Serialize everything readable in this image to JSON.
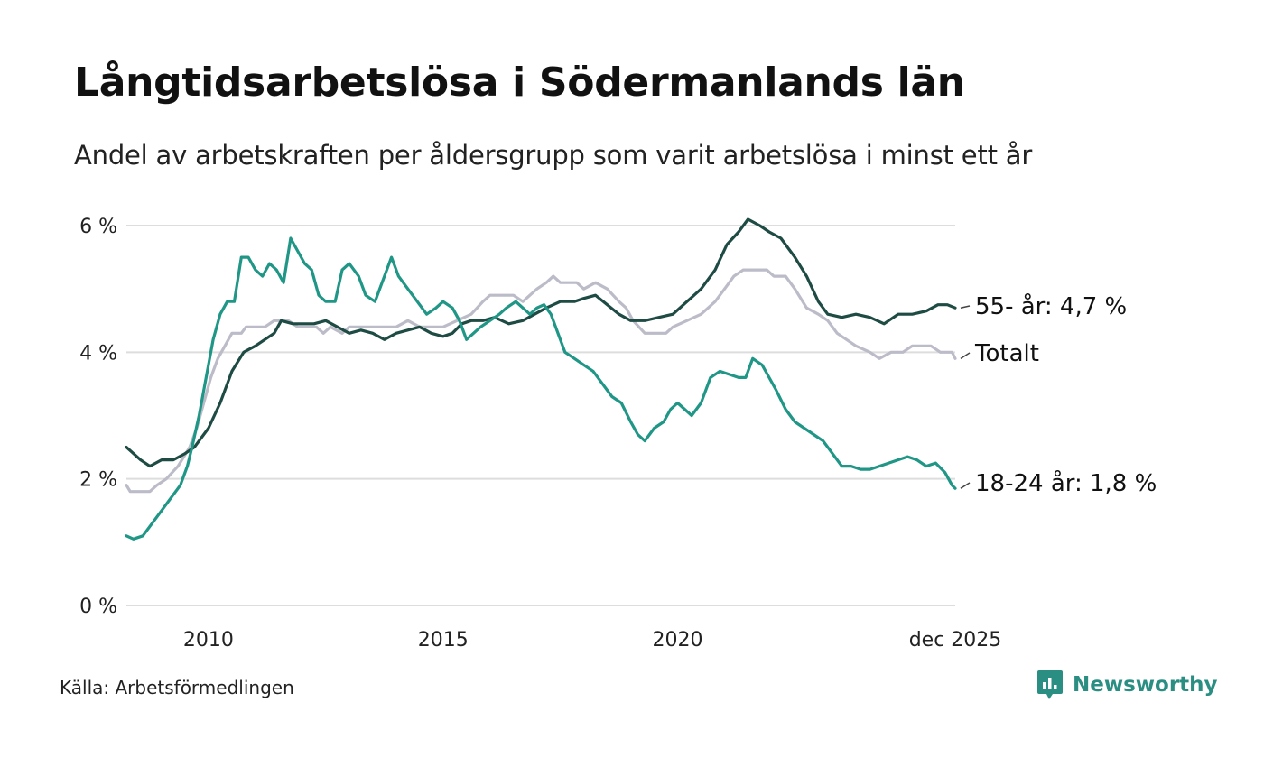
{
  "title": "Långtidsarbetslösa i Södermanlands län",
  "subtitle": "Andel av arbetskraften per åldersgrupp som varit arbetslösa i minst ett år",
  "source": "Källa: Arbetsförmedlingen",
  "brand": "Newsworthy",
  "colors": {
    "total": "#bcbcc9",
    "age55": "#1e4b43",
    "age18_24": "#1f9686",
    "grid": "#dddddd",
    "brand": "#2a8f82"
  },
  "chart_data": {
    "type": "line",
    "title": "Långtidsarbetslösa i Södermanlands län",
    "xlabel": "",
    "ylabel": "",
    "ylim": [
      0,
      6
    ],
    "xlim": [
      2008.25,
      2025.917
    ],
    "y_ticks": [
      {
        "value": 0,
        "label": "0 %"
      },
      {
        "value": 2,
        "label": "2 %"
      },
      {
        "value": 4,
        "label": "4 %"
      },
      {
        "value": 6,
        "label": "6 %"
      }
    ],
    "x_ticks": [
      {
        "value": 2010,
        "label": "2010"
      },
      {
        "value": 2015,
        "label": "2015"
      },
      {
        "value": 2020,
        "label": "2020"
      },
      {
        "value": 2025.917,
        "label": "dec 2025"
      }
    ],
    "series": [
      {
        "key": "total",
        "name": "Totalt",
        "end_label": "Totalt",
        "points": [
          [
            2008.25,
            1.9
          ],
          [
            2008.33,
            1.8
          ],
          [
            2008.75,
            1.8
          ],
          [
            2008.9,
            1.9
          ],
          [
            2009.1,
            2.0
          ],
          [
            2009.35,
            2.2
          ],
          [
            2009.6,
            2.5
          ],
          [
            2009.75,
            2.8
          ],
          [
            2009.9,
            3.2
          ],
          [
            2010.05,
            3.6
          ],
          [
            2010.2,
            3.9
          ],
          [
            2010.35,
            4.1
          ],
          [
            2010.5,
            4.3
          ],
          [
            2010.7,
            4.3
          ],
          [
            2010.8,
            4.4
          ],
          [
            2011.0,
            4.4
          ],
          [
            2011.2,
            4.4
          ],
          [
            2011.4,
            4.5
          ],
          [
            2011.7,
            4.5
          ],
          [
            2011.9,
            4.4
          ],
          [
            2012.3,
            4.4
          ],
          [
            2012.45,
            4.3
          ],
          [
            2012.6,
            4.4
          ],
          [
            2012.85,
            4.3
          ],
          [
            2013.0,
            4.4
          ],
          [
            2013.5,
            4.4
          ],
          [
            2014.0,
            4.4
          ],
          [
            2014.25,
            4.5
          ],
          [
            2014.5,
            4.4
          ],
          [
            2015.0,
            4.4
          ],
          [
            2015.3,
            4.5
          ],
          [
            2015.6,
            4.6
          ],
          [
            2015.85,
            4.8
          ],
          [
            2016.0,
            4.9
          ],
          [
            2016.5,
            4.9
          ],
          [
            2016.7,
            4.8
          ],
          [
            2016.85,
            4.9
          ],
          [
            2017.0,
            5.0
          ],
          [
            2017.2,
            5.1
          ],
          [
            2017.35,
            5.2
          ],
          [
            2017.5,
            5.1
          ],
          [
            2017.85,
            5.1
          ],
          [
            2018.0,
            5.0
          ],
          [
            2018.25,
            5.1
          ],
          [
            2018.5,
            5.0
          ],
          [
            2018.75,
            4.8
          ],
          [
            2018.9,
            4.7
          ],
          [
            2019.05,
            4.5
          ],
          [
            2019.3,
            4.3
          ],
          [
            2019.75,
            4.3
          ],
          [
            2019.9,
            4.4
          ],
          [
            2020.2,
            4.5
          ],
          [
            2020.5,
            4.6
          ],
          [
            2020.8,
            4.8
          ],
          [
            2021.0,
            5.0
          ],
          [
            2021.2,
            5.2
          ],
          [
            2021.4,
            5.3
          ],
          [
            2021.9,
            5.3
          ],
          [
            2022.05,
            5.2
          ],
          [
            2022.3,
            5.2
          ],
          [
            2022.5,
            5.0
          ],
          [
            2022.75,
            4.7
          ],
          [
            2023.0,
            4.6
          ],
          [
            2023.2,
            4.5
          ],
          [
            2023.4,
            4.3
          ],
          [
            2023.6,
            4.2
          ],
          [
            2023.8,
            4.1
          ],
          [
            2024.1,
            4.0
          ],
          [
            2024.3,
            3.9
          ],
          [
            2024.55,
            4.0
          ],
          [
            2024.8,
            4.0
          ],
          [
            2025.0,
            4.1
          ],
          [
            2025.4,
            4.1
          ],
          [
            2025.6,
            4.0
          ],
          [
            2025.85,
            4.0
          ],
          [
            2025.917,
            3.9
          ]
        ]
      },
      {
        "key": "age55",
        "name": "55- år",
        "end_label": "55- år: 4,7 %",
        "points": [
          [
            2008.25,
            2.5
          ],
          [
            2008.4,
            2.4
          ],
          [
            2008.55,
            2.3
          ],
          [
            2008.75,
            2.2
          ],
          [
            2009.0,
            2.3
          ],
          [
            2009.25,
            2.3
          ],
          [
            2009.5,
            2.4
          ],
          [
            2009.7,
            2.5
          ],
          [
            2010.0,
            2.8
          ],
          [
            2010.25,
            3.2
          ],
          [
            2010.5,
            3.7
          ],
          [
            2010.75,
            4.0
          ],
          [
            2011.0,
            4.1
          ],
          [
            2011.2,
            4.2
          ],
          [
            2011.4,
            4.3
          ],
          [
            2011.55,
            4.5
          ],
          [
            2011.8,
            4.45
          ],
          [
            2012.0,
            4.45
          ],
          [
            2012.25,
            4.45
          ],
          [
            2012.5,
            4.5
          ],
          [
            2012.75,
            4.4
          ],
          [
            2013.0,
            4.3
          ],
          [
            2013.25,
            4.35
          ],
          [
            2013.5,
            4.3
          ],
          [
            2013.75,
            4.2
          ],
          [
            2014.0,
            4.3
          ],
          [
            2014.25,
            4.35
          ],
          [
            2014.5,
            4.4
          ],
          [
            2014.75,
            4.3
          ],
          [
            2015.0,
            4.25
          ],
          [
            2015.2,
            4.3
          ],
          [
            2015.4,
            4.45
          ],
          [
            2015.6,
            4.5
          ],
          [
            2015.85,
            4.5
          ],
          [
            2016.1,
            4.55
          ],
          [
            2016.4,
            4.45
          ],
          [
            2016.7,
            4.5
          ],
          [
            2016.95,
            4.6
          ],
          [
            2017.2,
            4.7
          ],
          [
            2017.5,
            4.8
          ],
          [
            2017.8,
            4.8
          ],
          [
            2018.0,
            4.85
          ],
          [
            2018.25,
            4.9
          ],
          [
            2018.5,
            4.75
          ],
          [
            2018.75,
            4.6
          ],
          [
            2019.0,
            4.5
          ],
          [
            2019.3,
            4.5
          ],
          [
            2019.6,
            4.55
          ],
          [
            2019.9,
            4.6
          ],
          [
            2020.2,
            4.8
          ],
          [
            2020.5,
            5.0
          ],
          [
            2020.8,
            5.3
          ],
          [
            2021.05,
            5.7
          ],
          [
            2021.3,
            5.9
          ],
          [
            2021.5,
            6.1
          ],
          [
            2021.75,
            6.0
          ],
          [
            2021.95,
            5.9
          ],
          [
            2022.2,
            5.8
          ],
          [
            2022.5,
            5.5
          ],
          [
            2022.75,
            5.2
          ],
          [
            2023.0,
            4.8
          ],
          [
            2023.2,
            4.6
          ],
          [
            2023.5,
            4.55
          ],
          [
            2023.8,
            4.6
          ],
          [
            2024.1,
            4.55
          ],
          [
            2024.4,
            4.45
          ],
          [
            2024.7,
            4.6
          ],
          [
            2025.0,
            4.6
          ],
          [
            2025.3,
            4.65
          ],
          [
            2025.55,
            4.75
          ],
          [
            2025.75,
            4.75
          ],
          [
            2025.917,
            4.7
          ]
        ]
      },
      {
        "key": "age18_24",
        "name": "18-24 år",
        "end_label": "18-24 år: 1,8 %",
        "points": [
          [
            2008.25,
            1.1
          ],
          [
            2008.4,
            1.05
          ],
          [
            2008.6,
            1.1
          ],
          [
            2008.8,
            1.3
          ],
          [
            2009.0,
            1.5
          ],
          [
            2009.2,
            1.7
          ],
          [
            2009.4,
            1.9
          ],
          [
            2009.55,
            2.2
          ],
          [
            2009.65,
            2.5
          ],
          [
            2009.8,
            3.0
          ],
          [
            2009.95,
            3.6
          ],
          [
            2010.1,
            4.2
          ],
          [
            2010.25,
            4.6
          ],
          [
            2010.4,
            4.8
          ],
          [
            2010.55,
            4.8
          ],
          [
            2010.7,
            5.5
          ],
          [
            2010.85,
            5.5
          ],
          [
            2011.0,
            5.3
          ],
          [
            2011.15,
            5.2
          ],
          [
            2011.3,
            5.4
          ],
          [
            2011.45,
            5.3
          ],
          [
            2011.6,
            5.1
          ],
          [
            2011.75,
            5.8
          ],
          [
            2011.9,
            5.6
          ],
          [
            2012.05,
            5.4
          ],
          [
            2012.2,
            5.3
          ],
          [
            2012.35,
            4.9
          ],
          [
            2012.5,
            4.8
          ],
          [
            2012.7,
            4.8
          ],
          [
            2012.85,
            5.3
          ],
          [
            2013.0,
            5.4
          ],
          [
            2013.2,
            5.2
          ],
          [
            2013.35,
            4.9
          ],
          [
            2013.55,
            4.8
          ],
          [
            2013.75,
            5.2
          ],
          [
            2013.9,
            5.5
          ],
          [
            2014.05,
            5.2
          ],
          [
            2014.25,
            5.0
          ],
          [
            2014.45,
            4.8
          ],
          [
            2014.65,
            4.6
          ],
          [
            2014.85,
            4.7
          ],
          [
            2015.0,
            4.8
          ],
          [
            2015.2,
            4.7
          ],
          [
            2015.35,
            4.5
          ],
          [
            2015.5,
            4.2
          ],
          [
            2015.65,
            4.3
          ],
          [
            2015.8,
            4.4
          ],
          [
            2016.0,
            4.5
          ],
          [
            2016.2,
            4.6
          ],
          [
            2016.35,
            4.7
          ],
          [
            2016.55,
            4.8
          ],
          [
            2016.7,
            4.7
          ],
          [
            2016.85,
            4.6
          ],
          [
            2017.0,
            4.7
          ],
          [
            2017.15,
            4.75
          ],
          [
            2017.3,
            4.6
          ],
          [
            2017.45,
            4.3
          ],
          [
            2017.6,
            4.0
          ],
          [
            2017.8,
            3.9
          ],
          [
            2018.0,
            3.8
          ],
          [
            2018.2,
            3.7
          ],
          [
            2018.4,
            3.5
          ],
          [
            2018.6,
            3.3
          ],
          [
            2018.8,
            3.2
          ],
          [
            2019.0,
            2.9
          ],
          [
            2019.15,
            2.7
          ],
          [
            2019.3,
            2.6
          ],
          [
            2019.5,
            2.8
          ],
          [
            2019.7,
            2.9
          ],
          [
            2019.85,
            3.1
          ],
          [
            2020.0,
            3.2
          ],
          [
            2020.15,
            3.1
          ],
          [
            2020.3,
            3.0
          ],
          [
            2020.5,
            3.2
          ],
          [
            2020.7,
            3.6
          ],
          [
            2020.9,
            3.7
          ],
          [
            2021.1,
            3.65
          ],
          [
            2021.3,
            3.6
          ],
          [
            2021.45,
            3.6
          ],
          [
            2021.6,
            3.9
          ],
          [
            2021.8,
            3.8
          ],
          [
            2021.95,
            3.6
          ],
          [
            2022.1,
            3.4
          ],
          [
            2022.3,
            3.1
          ],
          [
            2022.5,
            2.9
          ],
          [
            2022.7,
            2.8
          ],
          [
            2022.9,
            2.7
          ],
          [
            2023.1,
            2.6
          ],
          [
            2023.3,
            2.4
          ],
          [
            2023.5,
            2.2
          ],
          [
            2023.7,
            2.2
          ],
          [
            2023.9,
            2.15
          ],
          [
            2024.1,
            2.15
          ],
          [
            2024.3,
            2.2
          ],
          [
            2024.5,
            2.25
          ],
          [
            2024.7,
            2.3
          ],
          [
            2024.9,
            2.35
          ],
          [
            2025.1,
            2.3
          ],
          [
            2025.3,
            2.2
          ],
          [
            2025.5,
            2.25
          ],
          [
            2025.7,
            2.1
          ],
          [
            2025.85,
            1.9
          ],
          [
            2025.917,
            1.85
          ]
        ]
      }
    ]
  }
}
